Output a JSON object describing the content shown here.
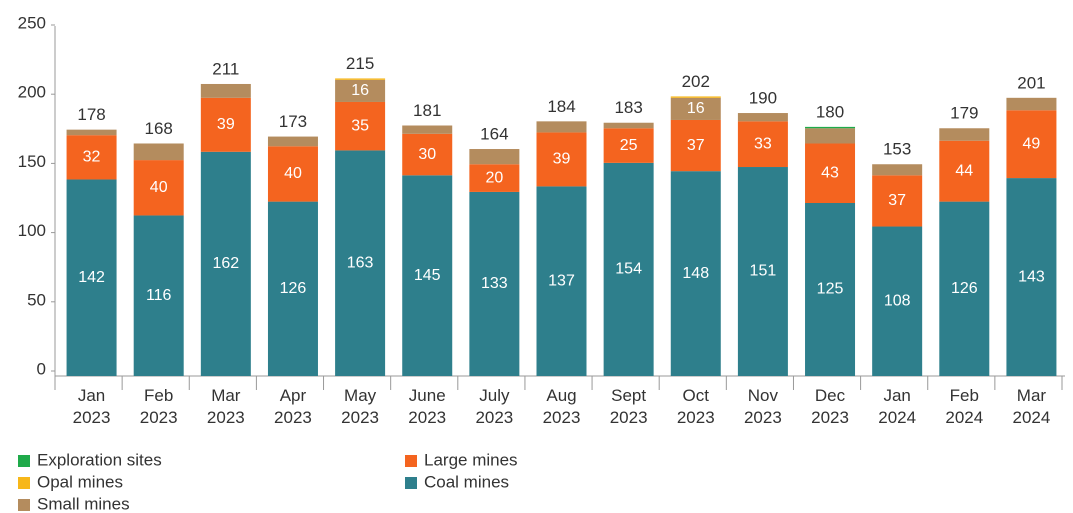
{
  "chart_data": {
    "type": "stacked_bar",
    "categories": [
      "Jan 2023",
      "Feb 2023",
      "Mar 2023",
      "Apr 2023",
      "May 2023",
      "June 2023",
      "July 2023",
      "Aug 2023",
      "Sept 2023",
      "Oct 2023",
      "Nov 2023",
      "Dec 2023",
      "Jan 2024",
      "Feb 2024",
      "Mar 2024"
    ],
    "totals": [
      178,
      168,
      211,
      173,
      215,
      181,
      164,
      184,
      183,
      202,
      190,
      180,
      153,
      179,
      201
    ],
    "series": [
      {
        "name": "Coal mines",
        "color": "#2e7f8c",
        "show_labels": true,
        "values": [
          142,
          116,
          162,
          126,
          163,
          145,
          133,
          137,
          154,
          148,
          151,
          125,
          108,
          126,
          143
        ]
      },
      {
        "name": "Large mines",
        "color": "#f4641f",
        "show_labels": true,
        "values": [
          32,
          40,
          39,
          40,
          35,
          30,
          20,
          39,
          25,
          37,
          33,
          43,
          37,
          44,
          49
        ]
      },
      {
        "name": "Small mines",
        "color": "#b48c5e",
        "show_labels": true,
        "values": [
          4,
          12,
          10,
          7,
          16,
          6,
          11,
          8,
          4,
          16,
          6,
          11,
          8,
          9,
          9
        ],
        "value_labels": [
          null,
          null,
          null,
          null,
          "16",
          null,
          null,
          null,
          null,
          "16",
          null,
          null,
          null,
          null,
          null
        ]
      },
      {
        "name": "Opal mines",
        "color": "#f7b719",
        "show_labels": false,
        "values": [
          0,
          0,
          0,
          0,
          1,
          0,
          0,
          0,
          0,
          1,
          0,
          0,
          0,
          0,
          0
        ]
      },
      {
        "name": "Exploration sites",
        "color": "#1faa4a",
        "show_labels": false,
        "values": [
          0,
          0,
          0,
          0,
          0,
          0,
          0,
          0,
          0,
          0,
          0,
          1,
          0,
          0,
          0
        ]
      }
    ],
    "legend_order": [
      4,
      3,
      2,
      1,
      0
    ],
    "ylim": [
      0,
      250
    ],
    "yticks": [
      0,
      50,
      100,
      150,
      200,
      250
    ]
  }
}
